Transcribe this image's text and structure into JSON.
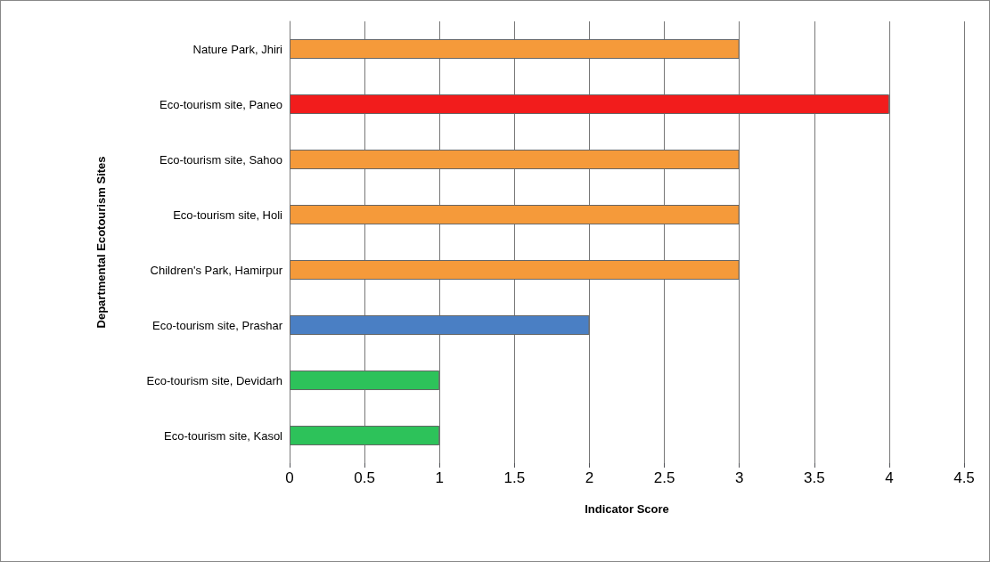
{
  "chart_data": {
    "type": "bar",
    "orientation": "horizontal",
    "xlabel": "Indicator Score",
    "ylabel": "Departmental Ecotourism Sites",
    "categories": [
      "Nature Park, Jhiri",
      "Eco-tourism site, Paneo",
      "Eco-tourism site, Sahoo",
      "Eco-tourism site, Holi",
      "Children's Park, Hamirpur",
      "Eco-tourism site, Prashar",
      "Eco-tourism site, Devidarh",
      "Eco-tourism site, Kasol"
    ],
    "values": [
      3,
      4,
      3,
      3,
      3,
      2,
      1,
      1
    ],
    "colors": [
      "#f59a3a",
      "#f21c1c",
      "#f59a3a",
      "#f59a3a",
      "#f59a3a",
      "#4a7fc4",
      "#2dc25a",
      "#2dc25a"
    ],
    "xlim": [
      0,
      4.5
    ],
    "xticks": [
      0,
      0.5,
      1,
      1.5,
      2,
      2.5,
      3,
      3.5,
      4,
      4.5
    ],
    "grid": "x"
  }
}
